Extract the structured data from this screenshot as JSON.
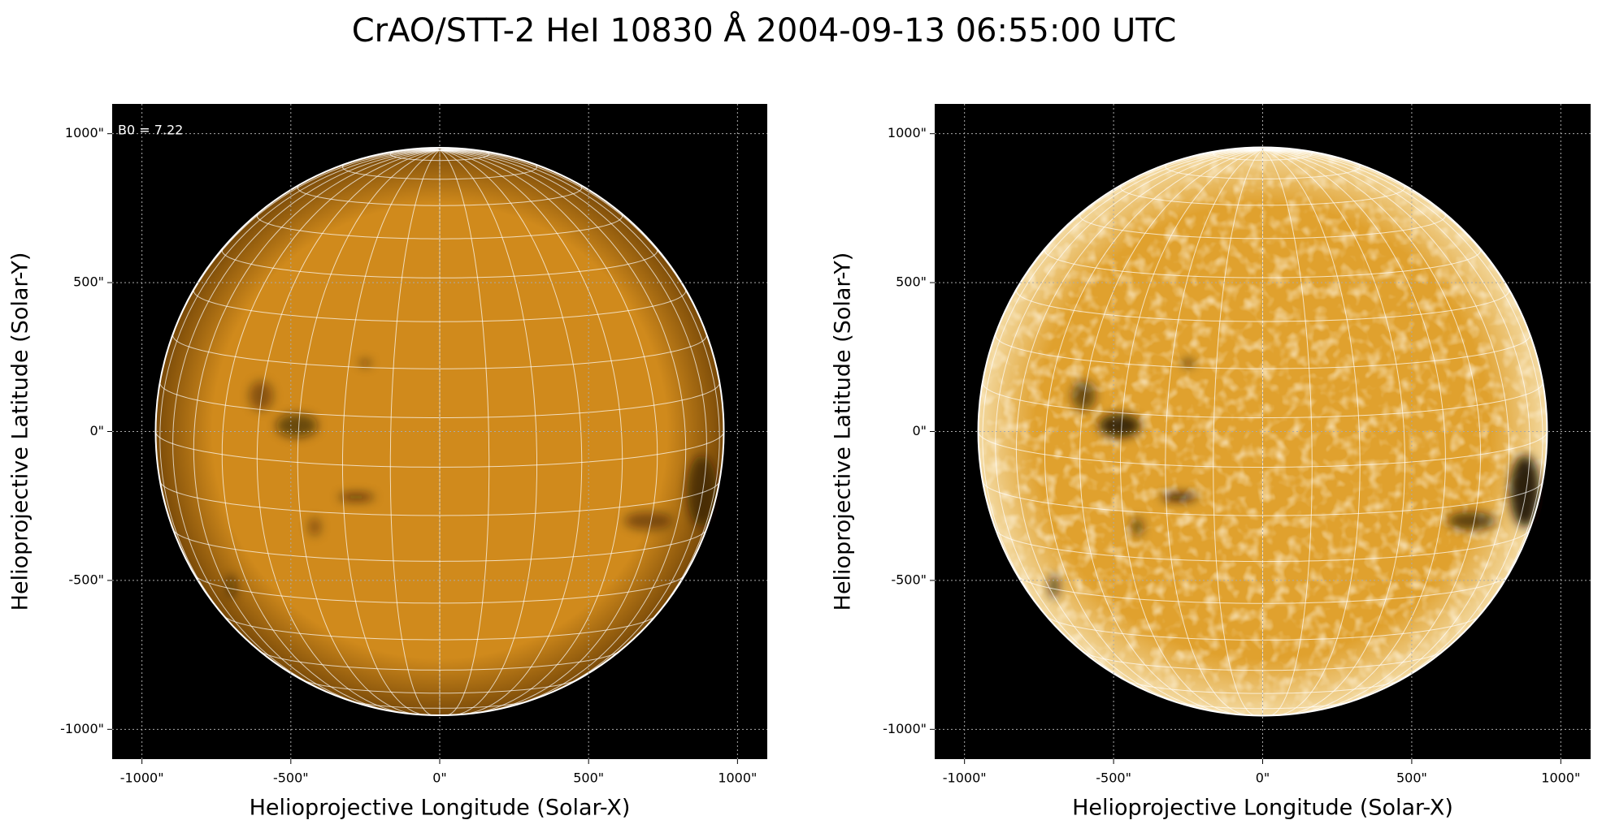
{
  "title": "CrAO/STT-2 HeI 10830 Å 2004-09-13 06:55:00 UTC",
  "chart_data": [
    {
      "type": "image",
      "xlabel": "Helioprojective Longitude (Solar-X)",
      "ylabel": "Helioprojective Latitude (Solar-Y)",
      "annotation": "B0 = 7.22",
      "b0": 7.22,
      "disk_radius": 954,
      "color": "#d08a1c",
      "limb_color": "#7a4a08",
      "xlim": [
        -1100,
        1100
      ],
      "ylim": [
        -1100,
        1100
      ],
      "xticks": [
        {
          "value": -1000,
          "label": "-1000\""
        },
        {
          "value": -500,
          "label": "-500\""
        },
        {
          "value": 0,
          "label": "0\""
        },
        {
          "value": 500,
          "label": "500\""
        },
        {
          "value": 1000,
          "label": "1000\""
        }
      ],
      "yticks": [
        {
          "value": -1000,
          "label": "-1000\""
        },
        {
          "value": -500,
          "label": "-500\""
        },
        {
          "value": 0,
          "label": "0\""
        },
        {
          "value": 500,
          "label": "500\""
        },
        {
          "value": 1000,
          "label": "1000\""
        }
      ],
      "grid": true
    },
    {
      "type": "image",
      "xlabel": "Helioprojective Longitude (Solar-X)",
      "ylabel": "Helioprojective Latitude (Solar-Y)",
      "b0": 7.22,
      "disk_radius": 954,
      "color": "#e0a12e",
      "limb_color": "#f3d9a0",
      "mottled": true,
      "xlim": [
        -1100,
        1100
      ],
      "ylim": [
        -1100,
        1100
      ],
      "xticks": [
        {
          "value": -1000,
          "label": "-1000\""
        },
        {
          "value": -500,
          "label": "-500\""
        },
        {
          "value": 0,
          "label": "0\""
        },
        {
          "value": 500,
          "label": "500\""
        },
        {
          "value": 1000,
          "label": "1000\""
        }
      ],
      "yticks": [
        {
          "value": -1000,
          "label": "-1000\""
        },
        {
          "value": -500,
          "label": "-500\""
        },
        {
          "value": 0,
          "label": "0\""
        },
        {
          "value": 500,
          "label": "500\""
        },
        {
          "value": 1000,
          "label": "1000\""
        }
      ],
      "grid": true
    }
  ]
}
